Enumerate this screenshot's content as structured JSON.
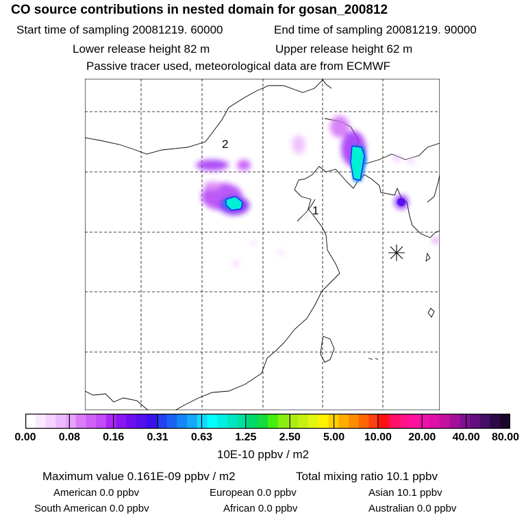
{
  "title": "CO  source contributions in nested domain for gosan_200812",
  "sampling": {
    "start": "Start time of sampling 20081219. 60000",
    "end": "End time of sampling 20081219. 90000"
  },
  "release": {
    "lower": "Lower release height   82 m",
    "upper": "Upper release height   62 m"
  },
  "tracer_note": "Passive tracer used, meteorological data are from ECMWF",
  "map": {
    "region_labels": [
      "1",
      "2"
    ],
    "receptor_marker": "asterisk-station-icon"
  },
  "colorbar": {
    "tick_labels": [
      "0.00",
      "0.08",
      "0.16",
      "0.31",
      "0.63",
      "1.25",
      "2.50",
      "5.00",
      "10.00",
      "20.00",
      "40.00",
      "80.00"
    ],
    "units": "10E-10 ppbv / m2",
    "colors": [
      "#ffffff",
      "#fbe9ff",
      "#f5d2ff",
      "#eebaff",
      "#e8a3ff",
      "#d97cf6",
      "#cf61f6",
      "#c24cf7",
      "#ad27f7",
      "#8a16f3",
      "#6d0ff0",
      "#5311ef",
      "#3a10ee",
      "#2440f2",
      "#1a62f4",
      "#1486f6",
      "#14a8f8",
      "#14d8fb",
      "#00ffff",
      "#00f0e1",
      "#00e6c3",
      "#00e0a0",
      "#00d86a",
      "#14dd3c",
      "#44ee11",
      "#88ee11",
      "#aaee11",
      "#c8f011",
      "#e3f511",
      "#fff200",
      "#ffd100",
      "#ffad00",
      "#ff8c00",
      "#ff6600",
      "#ff3e12",
      "#ff1111",
      "#ff1166",
      "#ff1188",
      "#ff11a0",
      "#ee11aa",
      "#dd11a6",
      "#c410a0",
      "#a2109a",
      "#821092",
      "#620f82",
      "#440d66",
      "#2b0a46",
      "#1a0629"
    ]
  },
  "stats": {
    "maximum": "Maximum value  0.161E-09 ppbv / m2",
    "total": "Total mixing ratio       10.1 ppbv",
    "american": "American        0.0 ppbv",
    "european": "European        0.0 ppbv",
    "asian": "Asian      10.1 ppbv",
    "south_american": "South American        0.0 ppbv",
    "african": "African        0.0 ppbv",
    "australian": "Australian        0.0 ppbv"
  }
}
